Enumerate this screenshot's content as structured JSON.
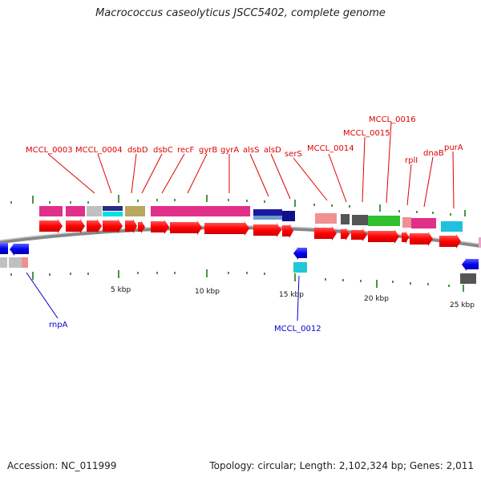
{
  "title": "Macrococcus caseolyticus JSCC5402, complete genome",
  "footer": {
    "accession": "Accession: NC_011999",
    "topology": "Topology: circular; Length: 2,102,324 bp; Genes: 2,011"
  },
  "scale_labels": [
    "5 kbp",
    "10 kbp",
    "15 kbp",
    "20 kbp",
    "25 kbp"
  ],
  "gene_labels_forward": [
    "MCCL_0003",
    "MCCL_0004",
    "dsbD",
    "dsbC",
    "recF",
    "gyrB",
    "gyrA",
    "alsS",
    "alsD",
    "serS",
    "MCCL_0014",
    "MCCL_0015",
    "MCCL_0016",
    "rplI",
    "dnaB",
    "purA"
  ],
  "gene_labels_reverse": [
    "rnpA",
    "MCCL_0012"
  ],
  "colors": {
    "forward_label": "#e00000",
    "reverse_label": "#0000cc",
    "forward_gene": "#ff0000",
    "reverse_gene": "#0000ee",
    "backbone": "#888888",
    "tick": "#1a7a1a"
  }
}
